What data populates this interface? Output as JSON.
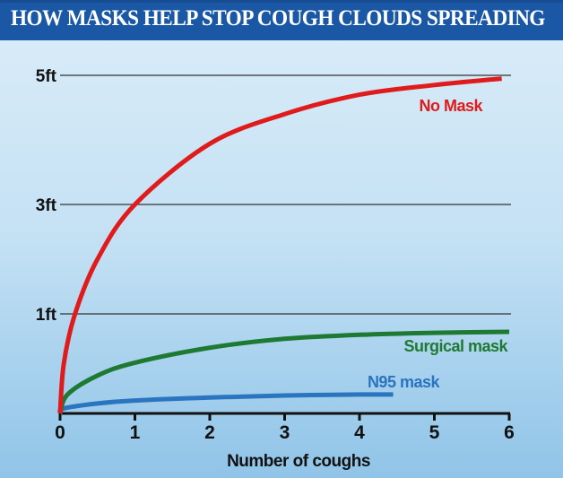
{
  "chart_data": {
    "type": "line",
    "title": "HOW MASKS HELP STOP COUGH CLOUDS SPREADING",
    "xlabel": "Number of coughs",
    "ylabel": "",
    "xlim": [
      0,
      6
    ],
    "ylim": [
      0,
      5
    ],
    "x_ticks": [
      "0",
      "1",
      "2",
      "3",
      "4",
      "5",
      "6"
    ],
    "y_ticks": [
      {
        "value": 1,
        "label": "1ft"
      },
      {
        "value": 3,
        "label": "3ft"
      },
      {
        "value": 5,
        "label": "5ft"
      }
    ],
    "grid": "horizontal at labelled ticks",
    "series": [
      {
        "name": "No Mask",
        "color": "#e01b1b",
        "x": [
          0,
          0.05,
          0.2,
          0.5,
          1,
          2,
          3,
          4,
          5,
          5.9
        ],
        "y": [
          0,
          0.5,
          1.0,
          2.0,
          3.0,
          3.94,
          4.4,
          4.7,
          4.85,
          4.95
        ]
      },
      {
        "name": "Surgical mask",
        "color": "#1e7a32",
        "x": [
          0,
          0.1,
          0.5,
          1,
          2,
          3,
          4,
          5,
          6
        ],
        "y": [
          0,
          0.19,
          0.38,
          0.51,
          0.66,
          0.75,
          0.79,
          0.81,
          0.82
        ]
      },
      {
        "name": "N95 mask",
        "color": "#2a74c0",
        "x": [
          0,
          0.05,
          0.5,
          1,
          2,
          3,
          4,
          4.45
        ],
        "y": [
          0,
          0.05,
          0.1,
          0.13,
          0.16,
          0.18,
          0.19,
          0.19
        ]
      }
    ]
  }
}
